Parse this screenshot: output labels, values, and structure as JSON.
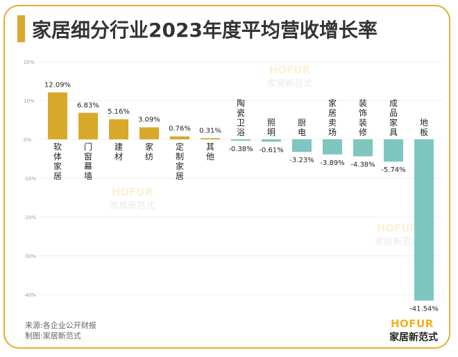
{
  "title": "家居细分行业2023年度平均营收增长率",
  "source": "来源:各企业公开财报",
  "maker": "制图:家居新范式",
  "logo": {
    "en": "HOFUR",
    "cn": "家居新范式"
  },
  "colors": {
    "positive": "#d9a92c",
    "negative": "#7fc6c0",
    "accent": "#e0b030"
  },
  "chart_data": {
    "type": "bar",
    "title": "家居细分行业2023年度平均营收增长率",
    "categories": [
      "软体家居",
      "门窗幕墙",
      "建材",
      "家纺",
      "定制家居",
      "其他",
      "陶瓷卫浴",
      "照明",
      "厨电",
      "家居卖场",
      "装饰装修",
      "成品家具",
      "地板"
    ],
    "values": [
      12.09,
      6.83,
      5.16,
      3.09,
      0.76,
      0.31,
      -0.38,
      -0.61,
      -3.23,
      -3.89,
      -4.38,
      -5.74,
      -41.54
    ],
    "value_labels": [
      "12.09%",
      "6.83%",
      "5.16%",
      "3.09%",
      "0.76%",
      "0.31%",
      "-0.38%",
      "-0.61%",
      "-3.23%",
      "-3.89%",
      "-4.38%",
      "-5.74%",
      "-41.54%"
    ],
    "yticks": [
      20,
      10,
      0,
      -10,
      -20,
      -30,
      -40
    ],
    "ytick_labels": [
      "20%",
      "10%",
      "0%",
      "-10%",
      "-20%",
      "-30%",
      "-40%"
    ],
    "ylim": [
      -40,
      20
    ],
    "grid": true
  }
}
